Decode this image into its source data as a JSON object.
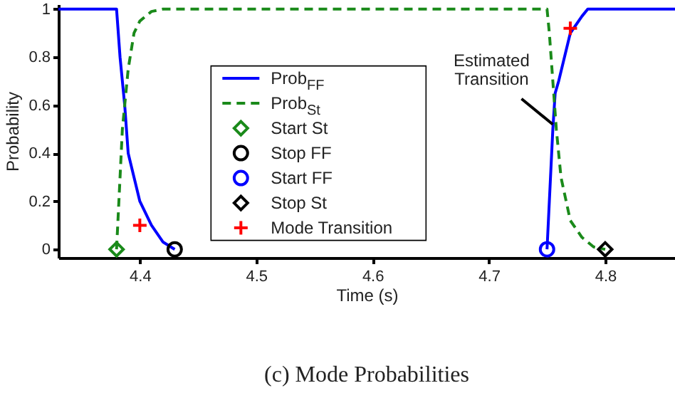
{
  "chart_data": {
    "type": "line",
    "title": "(c) Mode Probabilities",
    "xlabel": "Time (s)",
    "ylabel": "Probability",
    "xlim": [
      4.33,
      4.86
    ],
    "ylim": [
      -0.035,
      1.02
    ],
    "xticks": [
      4.4,
      4.5,
      4.6,
      4.7,
      4.8
    ],
    "yticks": [
      0,
      0.2,
      0.4,
      0.6,
      0.8,
      1
    ],
    "legend": "center",
    "grid": false,
    "annotations": [
      {
        "text": "Estimated Transition",
        "x": 4.755,
        "y": 0.52
      }
    ],
    "series": [
      {
        "name": "Prob$_{FF}$",
        "type": "line",
        "color": "#0000ff",
        "line_style": "solid",
        "marker": "none",
        "x": [
          4.33,
          4.38,
          4.383,
          4.387,
          4.39,
          4.395,
          4.4,
          4.41,
          4.42,
          4.43,
          4.6,
          4.75,
          4.752,
          4.755,
          4.757,
          4.76,
          4.765,
          4.77,
          4.78,
          4.785,
          4.86
        ],
        "values": [
          1,
          1,
          0.8,
          0.6,
          0.4,
          0.3,
          0.2,
          0.1,
          0.03,
          0,
          null,
          0,
          0.2,
          0.5,
          0.65,
          0.7,
          0.8,
          0.9,
          0.97,
          1,
          1
        ]
      },
      {
        "name": "Prob$_{St}$",
        "type": "line",
        "color": "#1a8a1a",
        "line_style": "dashed",
        "marker": "none",
        "x": [
          4.38,
          4.382,
          4.385,
          4.39,
          4.395,
          4.4,
          4.41,
          4.42,
          4.75,
          4.752,
          4.755,
          4.758,
          4.762,
          4.77,
          4.78,
          4.79,
          4.8
        ],
        "values": [
          0,
          0.2,
          0.5,
          0.75,
          0.9,
          0.95,
          0.99,
          1,
          1,
          0.9,
          0.7,
          0.5,
          0.3,
          0.12,
          0.05,
          0.01,
          0
        ]
      },
      {
        "name": "Start St",
        "type": "scatter",
        "color": "#1a8a1a",
        "marker": "diamond",
        "x": [
          4.38
        ],
        "values": [
          0
        ]
      },
      {
        "name": "Stop FF",
        "type": "scatter",
        "color": "#000000",
        "marker": "circle",
        "x": [
          4.43
        ],
        "values": [
          0
        ]
      },
      {
        "name": "Start FF",
        "type": "scatter",
        "color": "#0000ff",
        "marker": "circle",
        "x": [
          4.75
        ],
        "values": [
          0
        ]
      },
      {
        "name": "Stop St",
        "type": "scatter",
        "color": "#000000",
        "marker": "diamond",
        "x": [
          4.8
        ],
        "values": [
          0
        ]
      },
      {
        "name": "Mode Transition",
        "type": "scatter",
        "color": "#ff0000",
        "marker": "cross",
        "x": [
          4.4,
          4.77
        ],
        "values": [
          0.1,
          0.92
        ]
      }
    ]
  }
}
